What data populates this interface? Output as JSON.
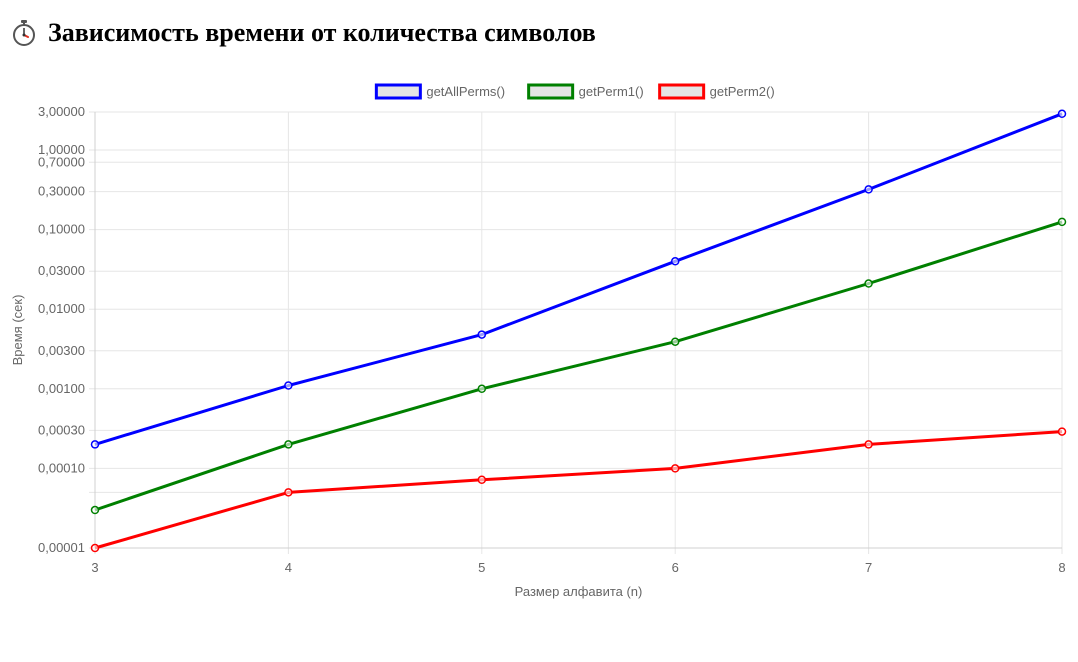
{
  "page": {
    "title": "Зависимость времени от количества символов",
    "title_icon": "stopwatch-icon"
  },
  "chart_data": {
    "type": "line",
    "x": [
      3,
      4,
      5,
      6,
      7,
      8
    ],
    "xlabel": "Размер алфавита (n)",
    "ylabel": "Время (сек)",
    "yscale": "log",
    "ylim": [
      1e-05,
      3
    ],
    "xlim": [
      3,
      8
    ],
    "x_ticks": [
      "3",
      "4",
      "5",
      "6",
      "7",
      "8"
    ],
    "y_ticks": [
      {
        "value": 3,
        "label": "3,00000"
      },
      {
        "value": 1,
        "label": "1,00000"
      },
      {
        "value": 0.7,
        "label": "0,70000"
      },
      {
        "value": 0.3,
        "label": "0,30000"
      },
      {
        "value": 0.1,
        "label": "0,10000"
      },
      {
        "value": 0.03,
        "label": "0,03000"
      },
      {
        "value": 0.01,
        "label": "0,01000"
      },
      {
        "value": 0.003,
        "label": "0,00300"
      },
      {
        "value": 0.001,
        "label": "0,00100"
      },
      {
        "value": 0.0003,
        "label": "0,00030"
      },
      {
        "value": 0.0001,
        "label": "0,00010"
      },
      {
        "value": 1e-05,
        "label": "0,00001"
      }
    ],
    "grid_extra": [
      5e-05
    ],
    "grid": true,
    "legend_position": "top",
    "series": [
      {
        "name": "getAllPerms()",
        "color": "#0000ff",
        "values": [
          0.0002,
          0.0011,
          0.0048,
          0.04,
          0.32,
          2.85
        ]
      },
      {
        "name": "getPerm1()",
        "color": "#008000",
        "values": [
          3e-05,
          0.0002,
          0.001,
          0.0039,
          0.021,
          0.125
        ]
      },
      {
        "name": "getPerm2()",
        "color": "#ff0000",
        "values": [
          1e-05,
          5e-05,
          7.2e-05,
          0.0001,
          0.0002,
          0.00029
        ]
      }
    ]
  }
}
